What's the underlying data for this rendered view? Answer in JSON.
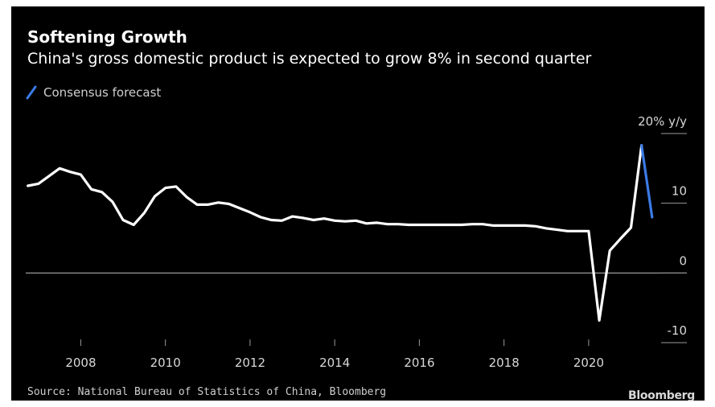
{
  "chart_data": {
    "type": "line",
    "title": "Softening Growth",
    "subtitle": "China's gross domestic product is expected to grow 8% in second quarter",
    "xlabel": "",
    "ylabel": "",
    "unit_label": "20% y/y",
    "xlim": [
      2006.7,
      2021.75
    ],
    "ylim": [
      -10,
      20
    ],
    "x_ticks": [
      "2008",
      "2010",
      "2012",
      "2014",
      "2016",
      "2018",
      "2020"
    ],
    "y_ticks": [
      {
        "value": 20,
        "label": "20% y/y"
      },
      {
        "value": 10,
        "label": "10"
      },
      {
        "value": 0,
        "label": "0"
      },
      {
        "value": -10,
        "label": "-10"
      }
    ],
    "legend": {
      "entries": [
        "Consensus forecast"
      ],
      "placement": "top-left"
    },
    "grid": false,
    "series": [
      {
        "name": "",
        "color": "#ffffff",
        "x": [
          2006.75,
          2007.0,
          2007.25,
          2007.5,
          2007.75,
          2008.0,
          2008.25,
          2008.5,
          2008.75,
          2009.0,
          2009.25,
          2009.5,
          2009.75,
          2010.0,
          2010.25,
          2010.5,
          2010.75,
          2011.0,
          2011.25,
          2011.5,
          2011.75,
          2012.0,
          2012.25,
          2012.5,
          2012.75,
          2013.0,
          2013.25,
          2013.5,
          2013.75,
          2014.0,
          2014.25,
          2014.5,
          2014.75,
          2015.0,
          2015.25,
          2015.5,
          2015.75,
          2016.0,
          2016.25,
          2016.5,
          2016.75,
          2017.0,
          2017.25,
          2017.5,
          2017.75,
          2018.0,
          2018.25,
          2018.5,
          2018.75,
          2019.0,
          2019.25,
          2019.5,
          2019.75,
          2020.0,
          2020.25,
          2020.5,
          2020.75,
          2021.0,
          2021.25
        ],
        "values": [
          12.5,
          12.8,
          13.9,
          15.0,
          14.5,
          14.1,
          12.0,
          11.6,
          10.2,
          7.6,
          6.9,
          8.6,
          11.0,
          12.2,
          12.4,
          10.9,
          9.8,
          9.8,
          10.1,
          9.9,
          9.3,
          8.7,
          8.0,
          7.6,
          7.5,
          8.1,
          7.9,
          7.6,
          7.8,
          7.5,
          7.4,
          7.5,
          7.1,
          7.2,
          7.0,
          7.0,
          6.9,
          6.9,
          6.9,
          6.9,
          6.9,
          6.9,
          7.0,
          7.0,
          6.8,
          6.8,
          6.8,
          6.8,
          6.7,
          6.4,
          6.2,
          6.0,
          6.0,
          6.0,
          -6.8,
          3.2,
          4.9,
          6.5,
          18.3
        ]
      },
      {
        "name": "Consensus forecast",
        "color": "#3b7be6",
        "x": [
          2021.25,
          2021.5
        ],
        "values": [
          18.3,
          8.0
        ]
      }
    ]
  },
  "footer": {
    "source": "Source: National Bureau of Statistics of China, Bloomberg",
    "brand": "Bloomberg"
  }
}
